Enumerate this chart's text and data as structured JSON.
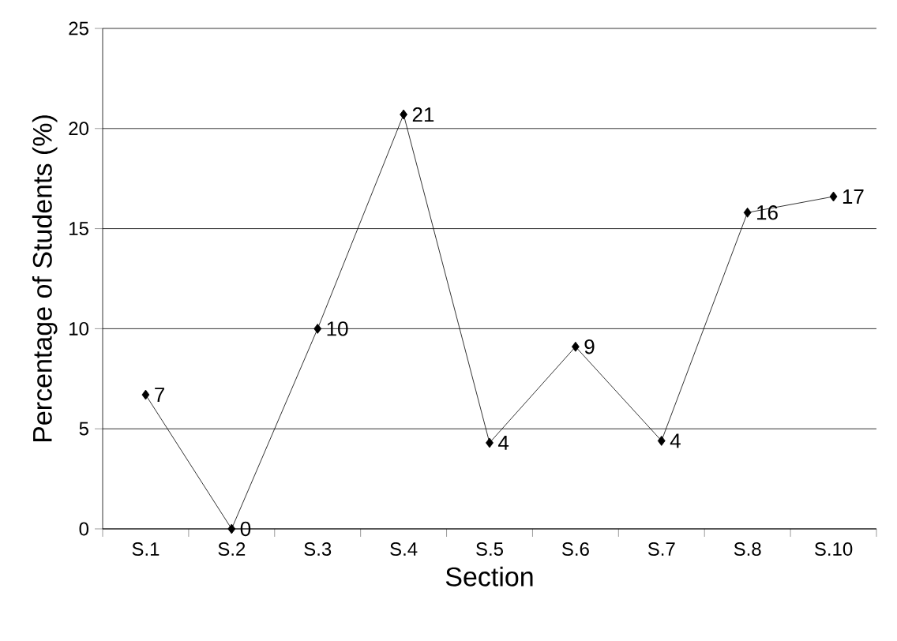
{
  "chart_data": {
    "type": "line",
    "xlabel": "Section",
    "ylabel": "Percentage of Students (%)",
    "categories": [
      "S.1",
      "S.2",
      "S.3",
      "S.4",
      "S.5",
      "S.6",
      "S.7",
      "S.8",
      "S.10"
    ],
    "series": [
      {
        "color": "#000000",
        "values": [
          6.7,
          0,
          10,
          20.7,
          4.3,
          9.1,
          4.4,
          15.8,
          16.6
        ],
        "value_labels": [
          "7",
          "0",
          "10",
          "21",
          "4",
          "9",
          "4",
          "16",
          "17"
        ]
      }
    ],
    "ylim": [
      0,
      25
    ],
    "yticks": [
      0,
      5,
      10,
      15,
      20,
      25
    ],
    "grid": "y",
    "marker": "diamond",
    "line_style": "solid"
  }
}
